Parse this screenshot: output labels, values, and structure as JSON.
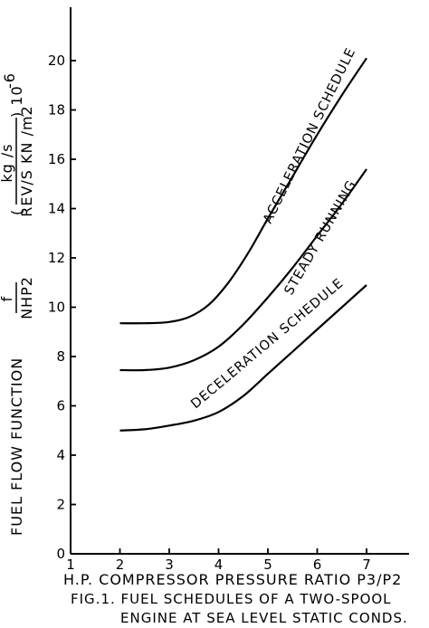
{
  "chart_data": {
    "type": "line",
    "xlabel": "H.P. COMPRESSOR  PRESSURE  RATIO  P3/P2",
    "ylabel": {
      "main": "FUEL  FLOW  FUNCTION",
      "frac_num": "f",
      "frac_den": "NHP2",
      "unit_open": "(",
      "unit_num": "kg /s",
      "unit_den": "REV/S  KN /m2",
      "unit_close": ") 10",
      "unit_exp": "-6"
    },
    "caption": {
      "line1": "FIG.1.  FUEL  SCHEDULES  OF  A  TWO-SPOOL",
      "line2": "ENGINE AT SEA LEVEL STATIC CONDS."
    },
    "xlim": [
      1,
      7.6
    ],
    "ylim": [
      0,
      21.5
    ],
    "x_ticks": [
      1,
      2,
      3,
      4,
      5,
      6,
      7
    ],
    "y_ticks": [
      0,
      2,
      4,
      6,
      8,
      10,
      12,
      14,
      16,
      18,
      20
    ],
    "grid": false,
    "series": [
      {
        "name": "ACCELERATION  SCHEDULE",
        "x": [
          2.0,
          2.5,
          3.0,
          3.4,
          3.8,
          4.2,
          4.6,
          5.0,
          5.5,
          6.0,
          6.5,
          7.0
        ],
        "y": [
          9.35,
          9.35,
          9.4,
          9.6,
          10.1,
          11.0,
          12.2,
          13.6,
          15.3,
          17.0,
          18.6,
          20.1
        ]
      },
      {
        "name": "STEADY  RUNNING",
        "x": [
          2.0,
          2.5,
          3.0,
          3.5,
          4.0,
          4.5,
          5.0,
          5.5,
          6.0,
          6.5,
          7.0
        ],
        "y": [
          7.45,
          7.45,
          7.55,
          7.85,
          8.4,
          9.3,
          10.4,
          11.6,
          12.9,
          14.2,
          15.6
        ]
      },
      {
        "name": "DECELERATION  SCHEDULE",
        "x": [
          2.0,
          2.5,
          3.0,
          3.5,
          4.0,
          4.5,
          5.0,
          5.5,
          6.0,
          6.5,
          7.0
        ],
        "y": [
          5.0,
          5.05,
          5.2,
          5.4,
          5.75,
          6.4,
          7.3,
          8.2,
          9.1,
          10.0,
          10.9
        ]
      }
    ]
  }
}
